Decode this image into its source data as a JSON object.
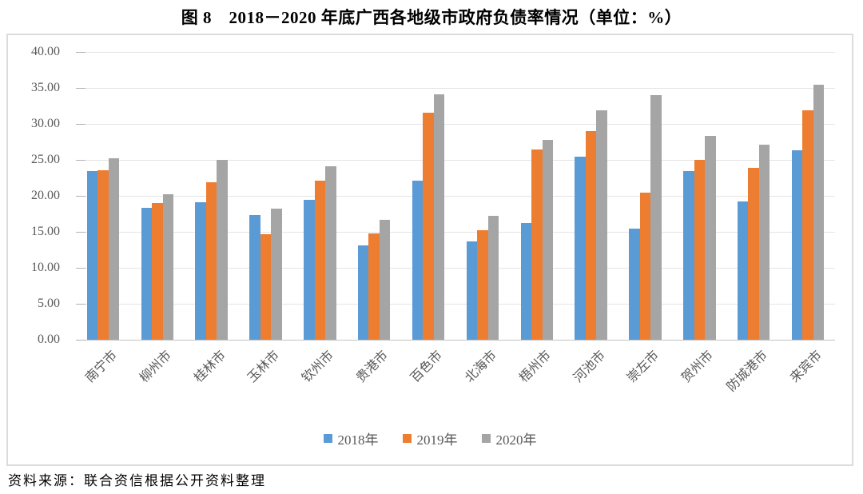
{
  "title": "图 8　2018－2020 年底广西各地级市政府负债率情况（单位：%）",
  "source": "资料来源：联合资信根据公开资料整理",
  "chart_data": {
    "type": "bar",
    "title": "图 8　2018－2020 年底广西各地级市政府负债率情况（单位：%）",
    "xlabel": "",
    "ylabel": "",
    "ylim": [
      0,
      40
    ],
    "ytick_step": 5,
    "ytick_labels": [
      "0.00",
      "5.00",
      "10.00",
      "15.00",
      "20.00",
      "25.00",
      "30.00",
      "35.00",
      "40.00"
    ],
    "grid": true,
    "legend_position": "bottom",
    "categories": [
      "南宁市",
      "柳州市",
      "桂林市",
      "玉林市",
      "钦州市",
      "贵港市",
      "百色市",
      "北海市",
      "梧州市",
      "河池市",
      "崇左市",
      "贺州市",
      "防城港市",
      "来宾市"
    ],
    "series": [
      {
        "name": "2018年",
        "color": "#5B9BD5",
        "values": [
          23.4,
          18.3,
          19.1,
          17.3,
          19.5,
          13.1,
          22.1,
          13.7,
          16.2,
          25.5,
          15.4,
          23.5,
          19.2,
          26.3
        ]
      },
      {
        "name": "2019年",
        "color": "#ED7D31",
        "values": [
          23.6,
          19.0,
          21.9,
          14.7,
          22.1,
          14.8,
          31.6,
          15.2,
          26.5,
          29.0,
          20.5,
          25.0,
          23.9,
          31.9
        ]
      },
      {
        "name": "2020年",
        "color": "#A5A5A5",
        "values": [
          25.2,
          20.2,
          25.0,
          18.2,
          24.1,
          16.7,
          34.1,
          17.2,
          27.8,
          31.9,
          34.0,
          28.3,
          27.1,
          35.5
        ]
      }
    ]
  }
}
